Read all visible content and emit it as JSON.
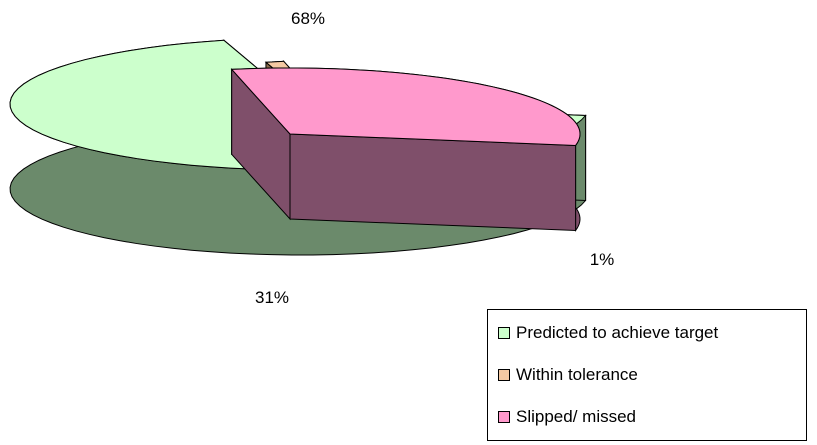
{
  "chart_data": {
    "type": "pie",
    "style": "3d-exploded",
    "categories": [
      "Predicted to achieve target",
      "Within tolerance",
      "Slipped/ missed"
    ],
    "values": [
      68,
      1,
      31
    ],
    "data_labels": [
      "68%",
      "1%",
      "31%"
    ],
    "colors": {
      "Predicted to achieve target": {
        "top": "#ccffcc",
        "side": "#6b8a6b"
      },
      "Within tolerance": {
        "top": "#f4c9a3",
        "side": "#8a6a4a"
      },
      "Slipped/ missed": {
        "top": "#ff99cc",
        "side": "#7f4f6a"
      }
    },
    "legend_position": "bottom-right",
    "title": ""
  },
  "legend": {
    "items": [
      {
        "label": "Predicted to achieve target",
        "color": "#ccffcc"
      },
      {
        "label": "Within tolerance",
        "color": "#f4c9a3"
      },
      {
        "label": "Slipped/ missed",
        "color": "#ff99cc"
      }
    ]
  }
}
